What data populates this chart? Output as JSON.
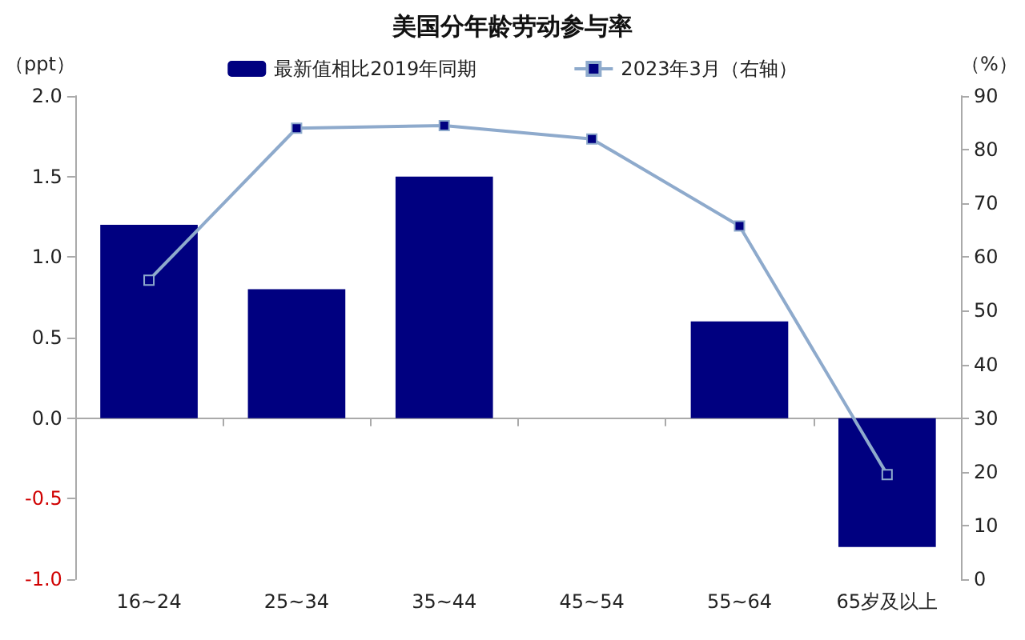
{
  "chart_data": {
    "type": "bar",
    "title": "美国分年龄劳动参与率",
    "ylabel": "（ppt）",
    "y2label": "（%）",
    "categories": [
      "16~24",
      "25~34",
      "35~44",
      "45~54",
      "55~64",
      "65岁及以上"
    ],
    "series": [
      {
        "name": "最新值相比2019年同期",
        "color": "#000080",
        "values": [
          1.2,
          0.8,
          1.5,
          0,
          0.6,
          -0.8
        ]
      },
      {
        "name": "2023年3月（右轴）",
        "type": "line",
        "axis": "y2",
        "color": "#8eaacc",
        "marker": "square",
        "values": [
          55.7,
          84.0,
          84.5,
          82.0,
          65.8,
          19.5
        ]
      }
    ],
    "ylim": [
      -1,
      2
    ],
    "yticks": [
      {
        "value": -1,
        "label": "-1.0"
      },
      {
        "value": -0.5,
        "label": "-0.5"
      },
      {
        "value": 0,
        "label": "0.0"
      },
      {
        "value": 0.5,
        "label": "0.5"
      },
      {
        "value": 1,
        "label": "1.0"
      },
      {
        "value": 1.5,
        "label": "1.5"
      },
      {
        "value": 2,
        "label": "2.0"
      }
    ],
    "y2lim": [
      0,
      90
    ],
    "y2ticks": [
      0,
      10,
      20,
      30,
      40,
      50,
      60,
      70,
      80,
      90
    ],
    "legend": "top"
  }
}
